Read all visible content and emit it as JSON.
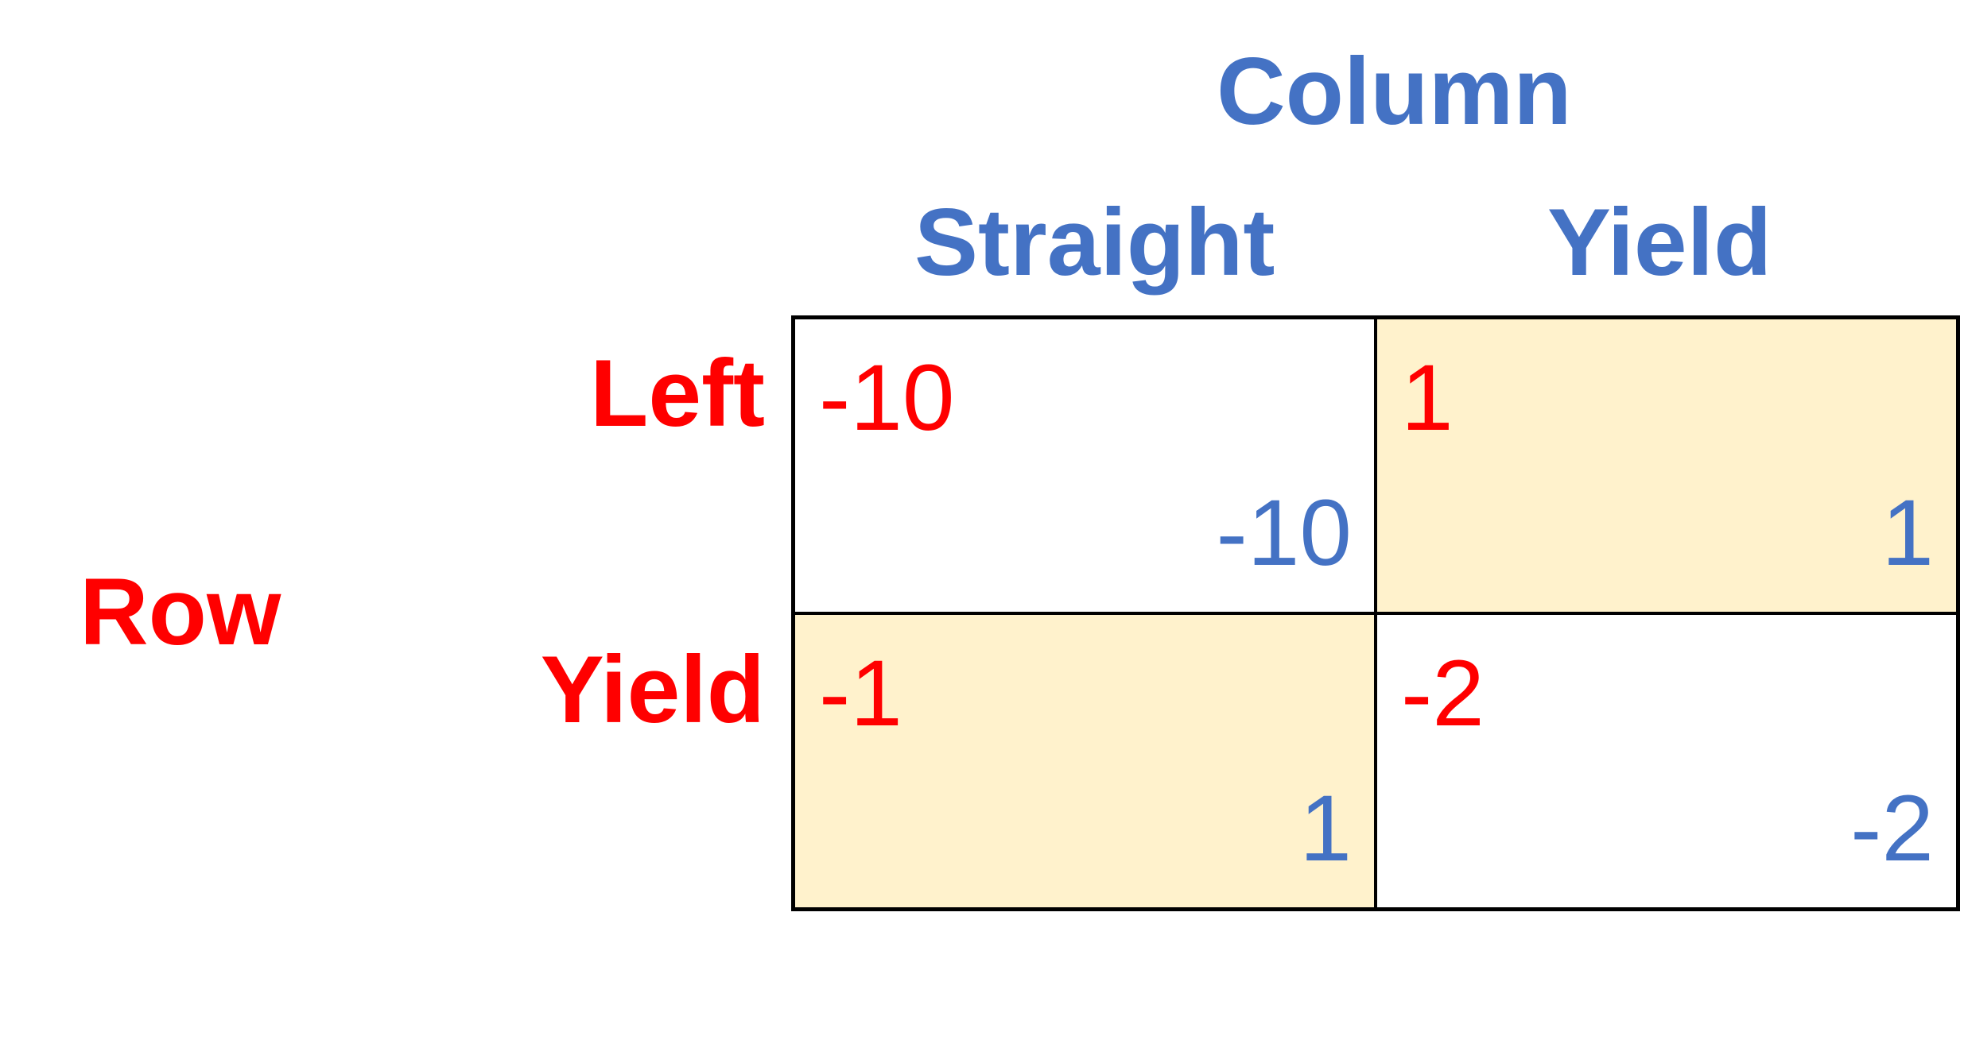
{
  "column_player": {
    "title": "Column",
    "strategies": [
      "Straight",
      "Yield"
    ]
  },
  "row_player": {
    "title": "Row",
    "strategies": [
      "Left",
      "Yield"
    ]
  },
  "payoffs": [
    [
      {
        "row": "-10",
        "col": "-10",
        "highlighted": false
      },
      {
        "row": "1",
        "col": "1",
        "highlighted": true
      }
    ],
    [
      {
        "row": "-1",
        "col": "1",
        "highlighted": true
      },
      {
        "row": "-2",
        "col": "-2",
        "highlighted": false
      }
    ]
  ],
  "colors": {
    "row_player": "#ff0000",
    "column_player": "#4472c4",
    "highlight": "#fff2cc",
    "grid": "#000000"
  }
}
